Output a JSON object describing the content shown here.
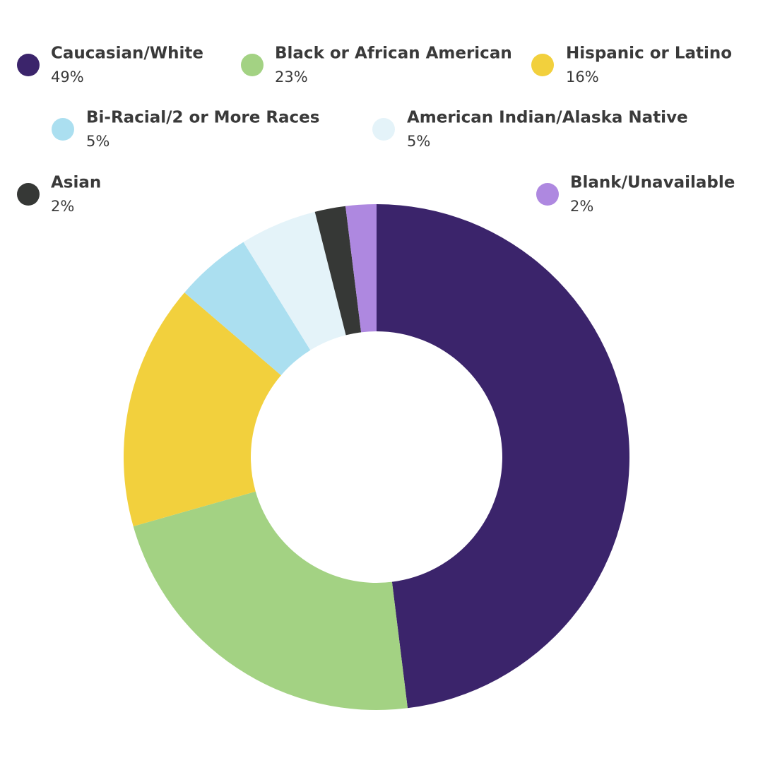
{
  "chart_data": {
    "type": "donut",
    "categories": [
      "Caucasian/White",
      "Black or African American",
      "Hispanic or Latino",
      "Bi-Racial/2 or More Races",
      "American Indian/Alaska Native",
      "Asian",
      "Blank/Unavailable"
    ],
    "values": [
      49,
      23,
      16,
      5,
      5,
      2,
      2
    ],
    "value_labels": [
      "49%",
      "23%",
      "16%",
      "5%",
      "5%",
      "2%",
      "2%"
    ],
    "colors": [
      "#3b246b",
      "#a3d283",
      "#f2d03d",
      "#abdff0",
      "#e4f3f9",
      "#363836",
      "#ae88e0"
    ]
  }
}
